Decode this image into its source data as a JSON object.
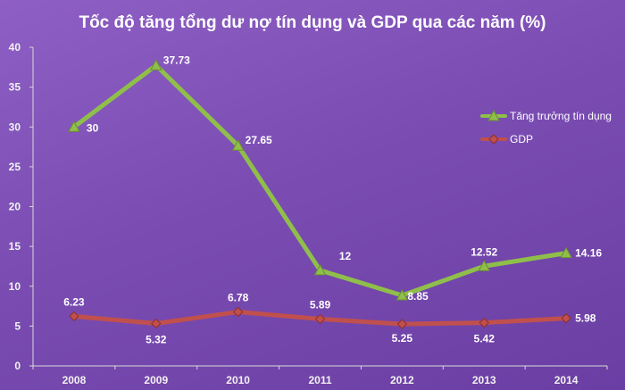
{
  "chart_data": {
    "type": "line",
    "title": "Tốc độ tăng tổng dư nợ tín dụng và GDP qua các năm (%)",
    "categories": [
      "2008",
      "2009",
      "2010",
      "2011",
      "2012",
      "2013",
      "2014"
    ],
    "ylim": [
      0,
      40
    ],
    "yticks": [
      "0",
      "5",
      "10",
      "15",
      "20",
      "25",
      "30",
      "35",
      "40"
    ],
    "grid": false,
    "legend_position": "right",
    "series": [
      {
        "name": "Tăng trưởng tín dụng",
        "values": [
          30,
          37.73,
          27.65,
          12,
          8.85,
          12.52,
          14.16
        ],
        "labels": [
          "30",
          "37.73",
          "27.65",
          "12",
          "8.85",
          "12.52",
          "14.16"
        ],
        "color": "#8fbf4a",
        "marker": "triangle"
      },
      {
        "name": "GDP",
        "values": [
          6.23,
          5.32,
          6.78,
          5.89,
          5.25,
          5.42,
          5.98
        ],
        "labels": [
          "6.23",
          "5.32",
          "6.78",
          "5.89",
          "5.25",
          "5.42",
          "5.98"
        ],
        "color": "#c0504d",
        "marker": "diamond"
      }
    ]
  }
}
